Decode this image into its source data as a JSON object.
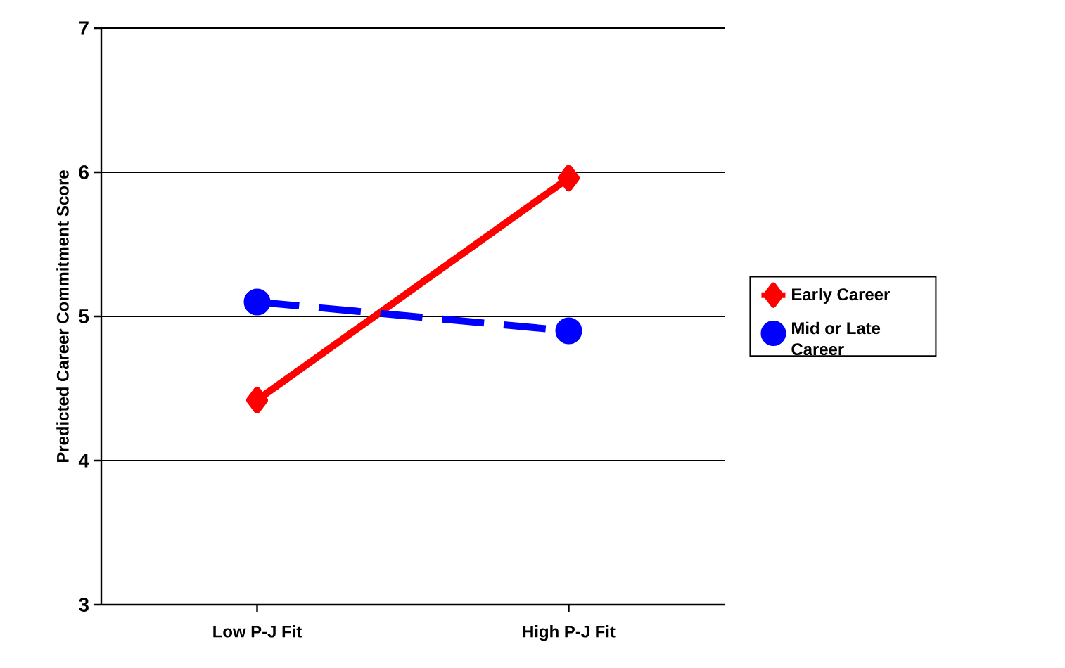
{
  "chart_data": {
    "type": "line",
    "ylabel": "Predicted Career Commitment Score",
    "categories": [
      "Low P-J Fit",
      "High P-J Fit"
    ],
    "series": [
      {
        "name": "Early Career",
        "color": "#ff0000",
        "values": [
          4.42,
          5.96
        ],
        "marker": "diamond",
        "line_style": "solid"
      },
      {
        "name": "Mid or Late Career",
        "color": "#0000ff",
        "values": [
          5.1,
          4.9
        ],
        "marker": "circle",
        "line_style": "dashed"
      }
    ],
    "ylim": [
      3,
      7
    ],
    "yticks": [
      3,
      4,
      5,
      6,
      7
    ],
    "grid": "y",
    "legend": "right"
  }
}
